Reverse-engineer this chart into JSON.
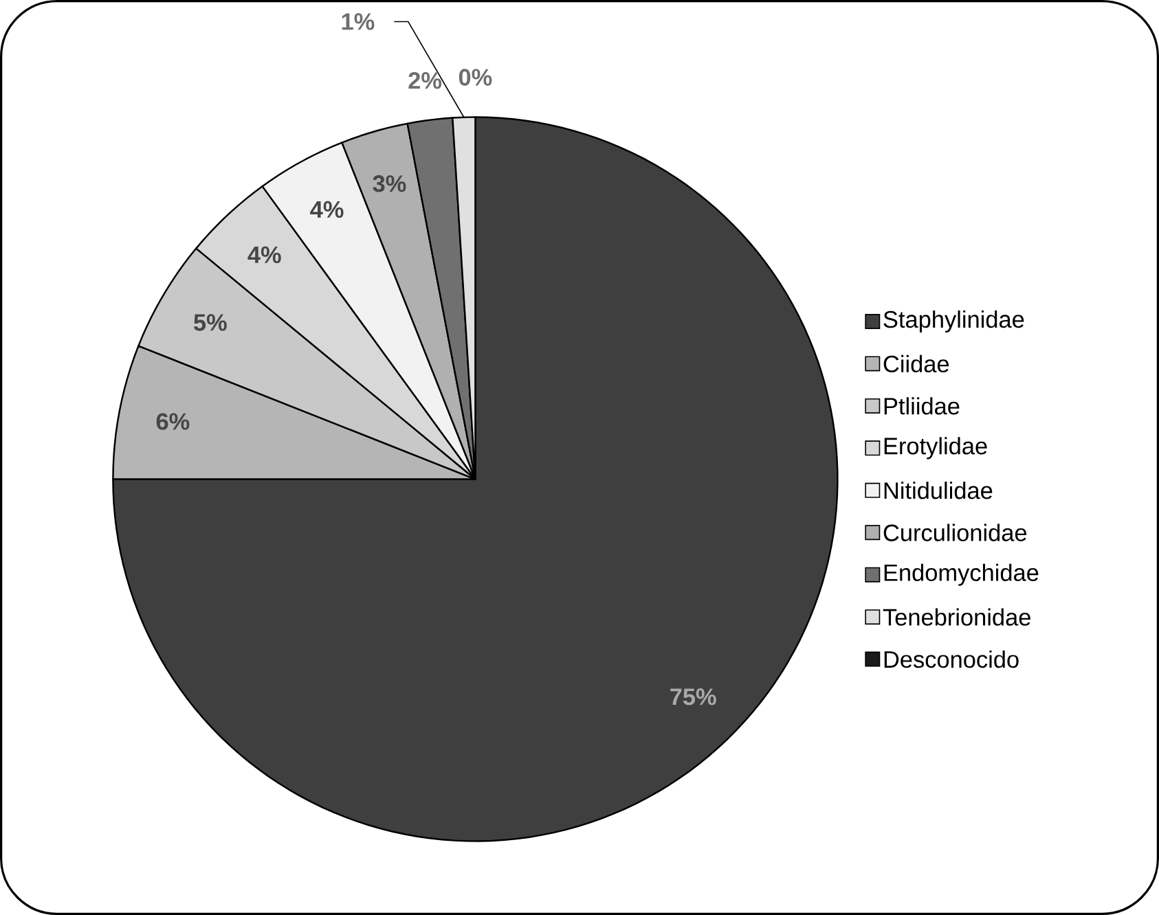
{
  "chart_data": {
    "type": "pie",
    "categories": [
      "Staphylinidae",
      "Ciidae",
      "Ptliidae",
      "Erotylidae",
      "Nitidulidae",
      "Curculionidae",
      "Endomychidae",
      "Tenebrionidae",
      "Desconocido"
    ],
    "values": [
      75,
      6,
      5,
      4,
      4,
      3,
      2,
      1,
      0
    ],
    "value_labels": [
      "75%",
      "6%",
      "5%",
      "4%",
      "4%",
      "3%",
      "2%",
      "1%",
      "0%"
    ],
    "colors": [
      "#3f3f3f",
      "#b5b5b5",
      "#c8c8c8",
      "#d8d8d8",
      "#f2f2f2",
      "#b0b0b0",
      "#707070",
      "#e0e0e0",
      "#1a1a1a"
    ],
    "legend": "right"
  }
}
